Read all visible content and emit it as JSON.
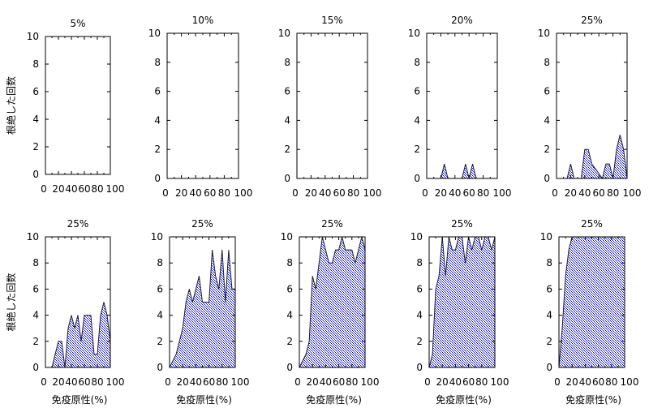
{
  "chart_data": [
    {
      "type": "area",
      "title": "5%",
      "x": [
        0,
        10,
        20,
        30,
        40,
        50,
        60,
        70,
        80,
        90,
        100
      ],
      "values": [
        0,
        0,
        0,
        0,
        0,
        0,
        0,
        0,
        0,
        0,
        0
      ],
      "xlim": [
        0,
        100
      ],
      "ylim": [
        0,
        10
      ],
      "xticks": [
        "0",
        "20",
        "40",
        "60",
        "80",
        "100"
      ],
      "yticks": [
        "0",
        "2",
        "4",
        "6",
        "8",
        "10"
      ],
      "ylabel": "根絶した回数",
      "xlabel": ""
    },
    {
      "type": "area",
      "title": "10%",
      "x": [
        0,
        10,
        20,
        30,
        40,
        50,
        60,
        70,
        80,
        90,
        100
      ],
      "values": [
        0,
        0,
        0,
        0,
        0,
        0,
        0,
        0,
        0,
        0,
        0
      ],
      "xlim": [
        0,
        100
      ],
      "ylim": [
        0,
        10
      ],
      "xticks": [
        "0",
        "20",
        "40",
        "60",
        "80",
        "100"
      ],
      "yticks": [
        "0",
        "2",
        "4",
        "6",
        "8",
        "10"
      ],
      "ylabel": "",
      "xlabel": ""
    },
    {
      "type": "area",
      "title": "15%",
      "x": [
        0,
        10,
        20,
        30,
        40,
        50,
        60,
        70,
        80,
        90,
        100
      ],
      "values": [
        0,
        0,
        0,
        0,
        0,
        0,
        0,
        0,
        0,
        0,
        0
      ],
      "xlim": [
        0,
        100
      ],
      "ylim": [
        0,
        10
      ],
      "xticks": [
        "0",
        "20",
        "40",
        "60",
        "80",
        "100"
      ],
      "yticks": [
        "0",
        "2",
        "4",
        "6",
        "8",
        "10"
      ],
      "ylabel": "",
      "xlabel": ""
    },
    {
      "type": "area",
      "title": "20%",
      "x": [
        0,
        20,
        25,
        30,
        50,
        55,
        60,
        65,
        70,
        100
      ],
      "values": [
        0,
        0,
        1,
        0,
        0,
        1,
        0,
        1,
        0,
        0
      ],
      "xlim": [
        0,
        100
      ],
      "ylim": [
        0,
        10
      ],
      "xticks": [
        "0",
        "20",
        "40",
        "60",
        "80",
        "100"
      ],
      "yticks": [
        "0",
        "2",
        "4",
        "6",
        "8",
        "10"
      ],
      "ylabel": "",
      "xlabel": ""
    },
    {
      "type": "area",
      "title": "25%",
      "x": [
        0,
        15,
        20,
        25,
        35,
        40,
        45,
        50,
        65,
        70,
        75,
        80,
        85,
        90,
        95,
        100
      ],
      "values": [
        0,
        0,
        1,
        0,
        0,
        2,
        2,
        1,
        0,
        1,
        1,
        0,
        2,
        3,
        2,
        0
      ],
      "xlim": [
        0,
        100
      ],
      "ylim": [
        0,
        10
      ],
      "xticks": [
        "0",
        "20",
        "40",
        "60",
        "80",
        "100"
      ],
      "yticks": [
        "0",
        "2",
        "4",
        "6",
        "8",
        "10"
      ],
      "ylabel": "",
      "xlabel": ""
    },
    {
      "type": "area",
      "title": "25%",
      "x": [
        0,
        10,
        20,
        25,
        30,
        35,
        40,
        45,
        50,
        55,
        60,
        65,
        70,
        75,
        80,
        85,
        90,
        95,
        100
      ],
      "values": [
        0,
        0,
        2,
        2,
        0,
        3,
        4,
        3,
        4,
        2,
        4,
        4,
        4,
        1,
        1,
        4,
        5,
        4,
        2
      ],
      "xlim": [
        0,
        100
      ],
      "ylim": [
        0,
        10
      ],
      "xticks": [
        "0",
        "20",
        "40",
        "60",
        "80",
        "100"
      ],
      "yticks": [
        "0",
        "2",
        "4",
        "6",
        "8",
        "10"
      ],
      "ylabel": "根絶した回数",
      "xlabel": "免疫原性(%)"
    },
    {
      "type": "area",
      "title": "25%",
      "x": [
        0,
        10,
        15,
        20,
        25,
        30,
        35,
        40,
        45,
        50,
        55,
        60,
        65,
        70,
        75,
        80,
        85,
        90,
        95,
        100
      ],
      "values": [
        0,
        1,
        2,
        3,
        5,
        6,
        5,
        6,
        7,
        5,
        5,
        5,
        9,
        7,
        6,
        9,
        5,
        9,
        6,
        6
      ],
      "xlim": [
        0,
        100
      ],
      "ylim": [
        0,
        10
      ],
      "xticks": [
        "0",
        "20",
        "40",
        "60",
        "80",
        "100"
      ],
      "yticks": [
        "0",
        "2",
        "4",
        "6",
        "8",
        "10"
      ],
      "ylabel": "",
      "xlabel": "免疫原性(%)"
    },
    {
      "type": "area",
      "title": "25%",
      "x": [
        0,
        10,
        15,
        20,
        25,
        30,
        35,
        40,
        45,
        50,
        55,
        60,
        65,
        70,
        75,
        80,
        85,
        90,
        95,
        100
      ],
      "values": [
        0,
        1,
        2,
        7,
        6,
        8,
        10,
        9,
        8,
        8,
        9,
        9,
        10,
        9,
        9,
        9,
        8,
        9,
        10,
        9
      ],
      "xlim": [
        0,
        100
      ],
      "ylim": [
        0,
        10
      ],
      "xticks": [
        "0",
        "20",
        "40",
        "60",
        "80",
        "100"
      ],
      "yticks": [
        "0",
        "2",
        "4",
        "6",
        "8",
        "10"
      ],
      "ylabel": "",
      "xlabel": "免疫原性(%)"
    },
    {
      "type": "area",
      "title": "25%",
      "x": [
        0,
        5,
        10,
        15,
        20,
        25,
        30,
        35,
        40,
        45,
        50,
        55,
        60,
        65,
        70,
        75,
        80,
        85,
        90,
        95,
        100
      ],
      "values": [
        0,
        1,
        6,
        7,
        10,
        7,
        10,
        9,
        9,
        10,
        10,
        8,
        10,
        9,
        10,
        10,
        9,
        10,
        10,
        9,
        10
      ],
      "xlim": [
        0,
        100
      ],
      "ylim": [
        0,
        10
      ],
      "xticks": [
        "0",
        "20",
        "40",
        "60",
        "80",
        "100"
      ],
      "yticks": [
        "0",
        "2",
        "4",
        "6",
        "8",
        "10"
      ],
      "ylabel": "",
      "xlabel": "免疫原性(%)"
    },
    {
      "type": "area",
      "title": "25%",
      "x": [
        0,
        5,
        10,
        15,
        20,
        25,
        30,
        100
      ],
      "values": [
        0,
        3,
        7,
        9,
        10,
        10,
        10,
        10
      ],
      "xlim": [
        0,
        100
      ],
      "ylim": [
        0,
        10
      ],
      "xticks": [
        "0",
        "20",
        "40",
        "60",
        "80",
        "100"
      ],
      "yticks": [
        "0",
        "2",
        "4",
        "6",
        "8",
        "10"
      ],
      "ylabel": "",
      "xlabel": "免疫原性(%)"
    }
  ],
  "colors": {
    "fill_ink": "#0000cc",
    "fill_bg": "#ffffff",
    "line": "#1a1a3a",
    "axis": "#000000"
  }
}
